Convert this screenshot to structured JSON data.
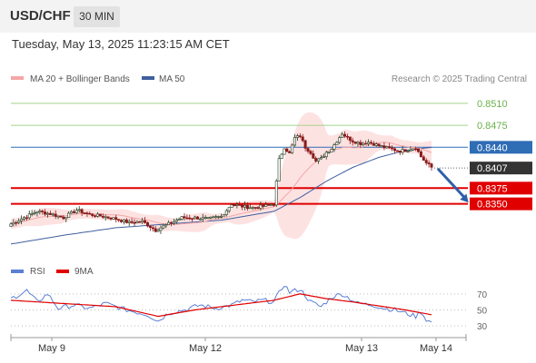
{
  "header": {
    "symbol": "USD/CHF",
    "timeframe": "30 MIN"
  },
  "datetime": "Tuesday, May 13, 2025 11:23:15 AM CET",
  "legend": {
    "ma20": "MA 20 + Bollinger Bands",
    "ma50": "MA 50"
  },
  "credit": "Research © 2025 Trading Central",
  "colors": {
    "bull_candle": "#1f3b1f",
    "bear_candle": "#8b1a1a",
    "bollinger_fill": "#fde2e2",
    "ma20": "#f4a6a6",
    "ma50": "#3f5f9f",
    "pivot": "#2f6db5",
    "resistance": "#a5d38c",
    "support": "#e00000",
    "last": "#333333",
    "rsi": "#5b7fd4",
    "rsi_ma": "#e00000"
  },
  "chart_data": [
    {
      "type": "candlestick",
      "title": "USD/CHF",
      "timeframe": "30 MIN",
      "x_tick_labels": [
        "May 9",
        "May 12",
        "May 13",
        "May 14"
      ],
      "ylim": [
        0.827,
        0.853
      ],
      "levels": [
        {
          "value": 0.851,
          "label": "0.8510",
          "kind": "resistance"
        },
        {
          "value": 0.8475,
          "label": "0.8475",
          "kind": "resistance"
        },
        {
          "value": 0.844,
          "label": "0.8440",
          "kind": "pivot"
        },
        {
          "value": 0.8407,
          "label": "0.8407",
          "kind": "last"
        },
        {
          "value": 0.8375,
          "label": "0.8375",
          "kind": "support"
        },
        {
          "value": 0.835,
          "label": "0.8350",
          "kind": "support"
        }
      ],
      "close_keypoints": [
        [
          0,
          0.8318
        ],
        [
          5,
          0.8328
        ],
        [
          10,
          0.8338
        ],
        [
          15,
          0.8334
        ],
        [
          20,
          0.8328
        ],
        [
          25,
          0.834
        ],
        [
          30,
          0.8333
        ],
        [
          35,
          0.833
        ],
        [
          40,
          0.8326
        ],
        [
          45,
          0.832
        ],
        [
          50,
          0.8322
        ],
        [
          55,
          0.8308
        ],
        [
          60,
          0.8318
        ],
        [
          65,
          0.8328
        ],
        [
          70,
          0.8328
        ],
        [
          75,
          0.8326
        ],
        [
          80,
          0.833
        ],
        [
          84,
          0.835
        ],
        [
          88,
          0.8346
        ],
        [
          92,
          0.8344
        ],
        [
          96,
          0.8346
        ],
        [
          100,
          0.835
        ],
        [
          102,
          0.842
        ],
        [
          104,
          0.844
        ],
        [
          106,
          0.843
        ],
        [
          108,
          0.8455
        ],
        [
          110,
          0.8458
        ],
        [
          112,
          0.844
        ],
        [
          114,
          0.8432
        ],
        [
          116,
          0.8418
        ],
        [
          118,
          0.8422
        ],
        [
          120,
          0.8432
        ],
        [
          122,
          0.8438
        ],
        [
          124,
          0.845
        ],
        [
          126,
          0.8462
        ],
        [
          128,
          0.8455
        ],
        [
          130,
          0.845
        ],
        [
          133,
          0.8446
        ],
        [
          136,
          0.8448
        ],
        [
          139,
          0.8444
        ],
        [
          142,
          0.844
        ],
        [
          145,
          0.8437
        ],
        [
          148,
          0.8434
        ],
        [
          151,
          0.8436
        ],
        [
          154,
          0.844
        ],
        [
          156,
          0.8425
        ],
        [
          158,
          0.8415
        ],
        [
          160,
          0.8408
        ]
      ],
      "ma50_keypoints": [
        [
          0,
          0.8286
        ],
        [
          20,
          0.83
        ],
        [
          40,
          0.8312
        ],
        [
          60,
          0.8318
        ],
        [
          80,
          0.8324
        ],
        [
          100,
          0.8338
        ],
        [
          110,
          0.836
        ],
        [
          120,
          0.8386
        ],
        [
          130,
          0.8408
        ],
        [
          140,
          0.8424
        ],
        [
          150,
          0.8435
        ],
        [
          160,
          0.844
        ]
      ],
      "projection": {
        "from": [
          161,
          0.8406
        ],
        "to": [
          172,
          0.8352
        ],
        "direction": "down"
      }
    },
    {
      "type": "line",
      "title": "RSI",
      "series": [
        {
          "name": "RSI",
          "keypoints": [
            [
              0,
              64
            ],
            [
              6,
              74
            ],
            [
              10,
              60
            ],
            [
              14,
              70
            ],
            [
              18,
              52
            ],
            [
              24,
              56
            ],
            [
              30,
              52
            ],
            [
              36,
              58
            ],
            [
              44,
              50
            ],
            [
              52,
              44
            ],
            [
              56,
              36
            ],
            [
              60,
              46
            ],
            [
              66,
              50
            ],
            [
              72,
              56
            ],
            [
              78,
              52
            ],
            [
              84,
              56
            ],
            [
              88,
              62
            ],
            [
              92,
              60
            ],
            [
              96,
              62
            ],
            [
              100,
              60
            ],
            [
              104,
              82
            ],
            [
              106,
              72
            ],
            [
              110,
              76
            ],
            [
              114,
              60
            ],
            [
              118,
              54
            ],
            [
              122,
              66
            ],
            [
              126,
              70
            ],
            [
              132,
              58
            ],
            [
              138,
              56
            ],
            [
              142,
              52
            ],
            [
              146,
              50
            ],
            [
              150,
              46
            ],
            [
              154,
              42
            ],
            [
              156,
              48
            ],
            [
              158,
              38
            ],
            [
              160,
              34
            ]
          ]
        },
        {
          "name": "9MA",
          "keypoints": [
            [
              0,
              62
            ],
            [
              20,
              58
            ],
            [
              40,
              54
            ],
            [
              56,
              42
            ],
            [
              70,
              50
            ],
            [
              90,
              58
            ],
            [
              100,
              62
            ],
            [
              110,
              70
            ],
            [
              120,
              64
            ],
            [
              130,
              60
            ],
            [
              140,
              55
            ],
            [
              150,
              50
            ],
            [
              160,
              44
            ]
          ]
        }
      ],
      "ylim": [
        20,
        80
      ],
      "y_tick_labels": [
        "70",
        "50",
        "30"
      ]
    }
  ]
}
